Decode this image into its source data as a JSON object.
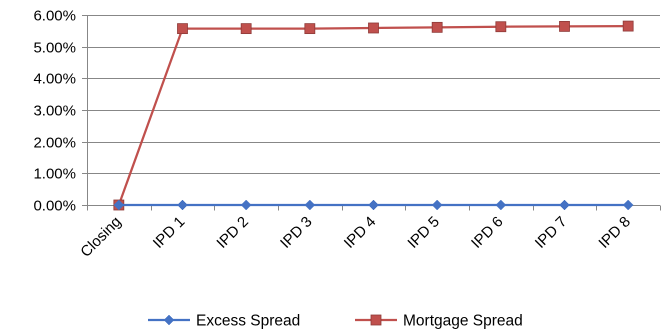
{
  "chart_data": {
    "type": "line",
    "categories": [
      "Closing",
      "IPD 1",
      "IPD 2",
      "IPD 3",
      "IPD 4",
      "IPD 5",
      "IPD 6",
      "IPD 7",
      "IPD 8"
    ],
    "ylim": [
      0,
      0.06
    ],
    "yticks": [
      0,
      0.01,
      0.02,
      0.03,
      0.04,
      0.05,
      0.06
    ],
    "ytick_labels": [
      "0.00%",
      "1.00%",
      "2.00%",
      "3.00%",
      "4.00%",
      "5.00%",
      "6.00%"
    ],
    "grid": "horizontal",
    "legend_position": "bottom",
    "series": [
      {
        "name": "Excess Spread",
        "color": "#4472C4",
        "marker": "diamond",
        "values": [
          0,
          0,
          0,
          0,
          0,
          0,
          0,
          0,
          0
        ]
      },
      {
        "name": "Mortgage Spread",
        "color": "#C0504D",
        "marker": "square",
        "values": [
          0,
          0.0557,
          0.0557,
          0.0557,
          0.0559,
          0.0561,
          0.0563,
          0.0564,
          0.0565
        ]
      }
    ]
  }
}
